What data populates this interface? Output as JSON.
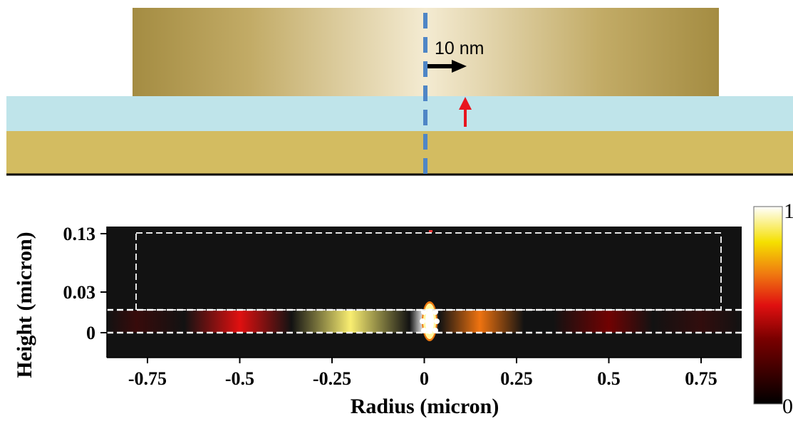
{
  "schematic": {
    "scale_label": "10 nm"
  },
  "chart_data": {
    "type": "heatmap",
    "title": "",
    "xlabel": "Radius (micron)",
    "ylabel": "Height (micron)",
    "xlim": [
      -0.86,
      0.86
    ],
    "x_ticks": [
      -0.75,
      -0.5,
      -0.25,
      0,
      0.25,
      0.5,
      0.75
    ],
    "x_tick_labels": [
      "-0.75",
      "-0.5",
      "-0.25",
      "0",
      "0.25",
      "0.5",
      "0.75"
    ],
    "y_ticks": [
      0,
      0.03,
      0.13
    ],
    "y_tick_labels": [
      "0",
      "0.03",
      "0.13"
    ],
    "colorbar": {
      "min": 0,
      "max": 1,
      "min_label": "0",
      "max_label": "1"
    },
    "intensity_profile": {
      "r": [
        -0.78,
        -0.5,
        -0.2,
        0,
        0.15,
        0.5,
        0.75
      ],
      "intensity": [
        0.12,
        0.5,
        0.9,
        1.0,
        0.65,
        0.3,
        0.1
      ]
    }
  }
}
